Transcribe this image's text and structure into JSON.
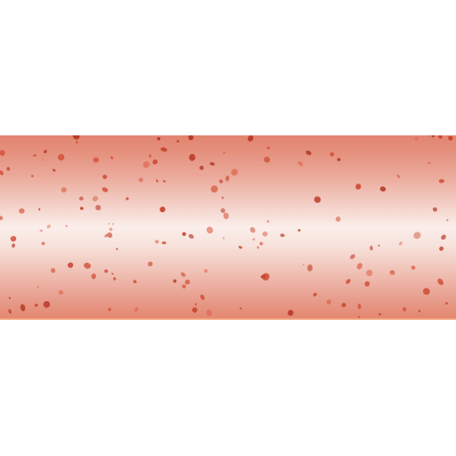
{
  "image": {
    "background_color": "#ffffff",
    "band_color_top": "#e28470",
    "band_color_center": "#fbeeea",
    "band_color_bottom": "#e3866f",
    "band_edge_color": "#f0a07a",
    "speckle_colors": [
      "#c8442e",
      "#d4543c",
      "#e0705a",
      "#b83a28"
    ]
  }
}
